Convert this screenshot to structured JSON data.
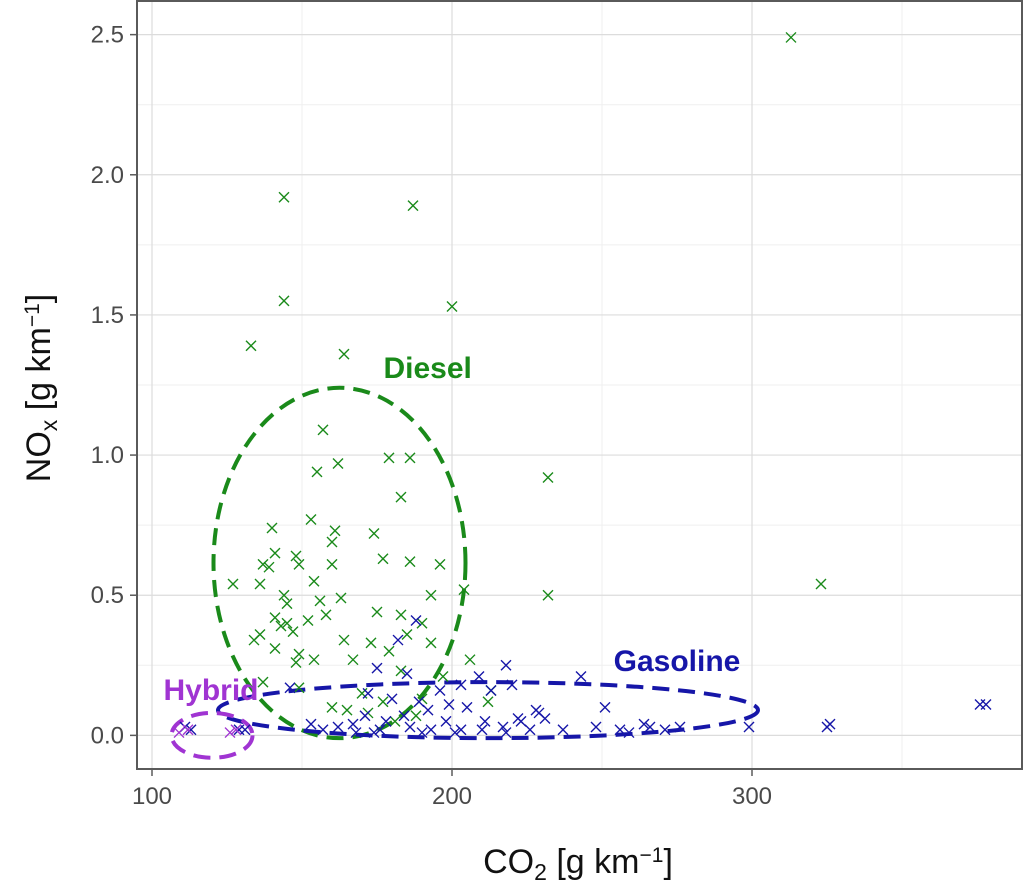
{
  "chart_data": {
    "type": "scatter",
    "xlim": [
      95,
      390
    ],
    "ylim": [
      -0.12,
      2.62
    ],
    "x_ticks": [
      100,
      200,
      300
    ],
    "y_ticks": [
      0.0,
      0.5,
      1.0,
      1.5,
      2.0,
      2.5
    ],
    "x_tick_labels": [
      "100",
      "200",
      "300"
    ],
    "y_tick_labels": [
      "0.0",
      "0.5",
      "1.0",
      "1.5",
      "2.0",
      "2.5"
    ],
    "grid": true,
    "xlabel": {
      "base": "CO",
      "sub": "2",
      "unit_prefix": " [g km",
      "sup": "−1",
      "suffix": "]"
    },
    "ylabel": {
      "base": "NO",
      "sub": "x",
      "unit_prefix": " [g km",
      "sup": "−1",
      "suffix": "]"
    },
    "groups": [
      {
        "label": "Diesel",
        "color": "#1a8a1a",
        "ellipse": {
          "cx": 162.5,
          "cy": 0.615,
          "rx": 42,
          "ry": 0.625
        }
      },
      {
        "label": "Gasoline",
        "color": "#1616a8",
        "ellipse": {
          "cx": 212,
          "cy": 0.09,
          "rx": 90,
          "ry": 0.1
        }
      },
      {
        "label": "Hybrid",
        "color": "#a034d2",
        "ellipse": {
          "cx": 120,
          "cy": 0.0,
          "rx": 13.5,
          "ry": 0.08
        }
      }
    ],
    "series": [
      {
        "group": "Diesel",
        "points": [
          [
            313,
            2.49
          ],
          [
            144,
            1.92
          ],
          [
            187,
            1.89
          ],
          [
            144,
            1.55
          ],
          [
            200,
            1.53
          ],
          [
            133,
            1.39
          ],
          [
            164,
            1.36
          ],
          [
            157,
            1.09
          ],
          [
            162,
            0.97
          ],
          [
            155,
            0.94
          ],
          [
            179,
            0.99
          ],
          [
            186,
            0.99
          ],
          [
            232,
            0.92
          ],
          [
            183,
            0.85
          ],
          [
            153,
            0.77
          ],
          [
            140,
            0.74
          ],
          [
            161,
            0.73
          ],
          [
            160,
            0.69
          ],
          [
            174,
            0.72
          ],
          [
            141,
            0.65
          ],
          [
            148,
            0.64
          ],
          [
            149,
            0.61
          ],
          [
            137,
            0.61
          ],
          [
            139,
            0.6
          ],
          [
            160,
            0.61
          ],
          [
            177,
            0.63
          ],
          [
            186,
            0.62
          ],
          [
            196,
            0.61
          ],
          [
            127,
            0.54
          ],
          [
            136,
            0.54
          ],
          [
            154,
            0.55
          ],
          [
            163,
            0.49
          ],
          [
            232,
            0.5
          ],
          [
            193,
            0.5
          ],
          [
            204,
            0.52
          ],
          [
            323,
            0.54
          ],
          [
            144,
            0.5
          ],
          [
            145,
            0.47
          ],
          [
            156,
            0.48
          ],
          [
            141,
            0.42
          ],
          [
            152,
            0.41
          ],
          [
            158,
            0.43
          ],
          [
            175,
            0.44
          ],
          [
            183,
            0.43
          ],
          [
            190,
            0.4
          ],
          [
            143,
            0.39
          ],
          [
            145,
            0.4
          ],
          [
            147,
            0.37
          ],
          [
            134,
            0.34
          ],
          [
            136,
            0.36
          ],
          [
            164,
            0.34
          ],
          [
            173,
            0.33
          ],
          [
            185,
            0.36
          ],
          [
            141,
            0.31
          ],
          [
            149,
            0.29
          ],
          [
            154,
            0.27
          ],
          [
            167,
            0.27
          ],
          [
            179,
            0.3
          ],
          [
            193,
            0.33
          ],
          [
            148,
            0.26
          ],
          [
            183,
            0.23
          ],
          [
            206,
            0.27
          ],
          [
            137,
            0.19
          ],
          [
            149,
            0.17
          ],
          [
            170,
            0.15
          ],
          [
            177,
            0.12
          ],
          [
            190,
            0.13
          ],
          [
            197,
            0.21
          ],
          [
            212,
            0.12
          ],
          [
            160,
            0.1
          ],
          [
            165,
            0.09
          ],
          [
            172,
            0.08
          ],
          [
            181,
            0.05
          ],
          [
            188,
            0.07
          ],
          [
            213,
            0.16
          ]
        ]
      },
      {
        "group": "Gasoline",
        "points": [
          [
            376,
            0.11
          ],
          [
            378,
            0.11
          ],
          [
            325,
            0.03
          ],
          [
            326,
            0.04
          ],
          [
            188,
            0.41
          ],
          [
            182,
            0.34
          ],
          [
            185,
            0.22
          ],
          [
            175,
            0.24
          ],
          [
            218,
            0.25
          ],
          [
            243,
            0.21
          ],
          [
            146,
            0.17
          ],
          [
            203,
            0.18
          ],
          [
            209,
            0.21
          ],
          [
            220,
            0.18
          ],
          [
            196,
            0.16
          ],
          [
            213,
            0.16
          ],
          [
            172,
            0.15
          ],
          [
            180,
            0.13
          ],
          [
            189,
            0.12
          ],
          [
            199,
            0.11
          ],
          [
            205,
            0.1
          ],
          [
            228,
            0.09
          ],
          [
            231,
            0.06
          ],
          [
            251,
            0.1
          ],
          [
            192,
            0.09
          ],
          [
            184,
            0.07
          ],
          [
            198,
            0.05
          ],
          [
            211,
            0.05
          ],
          [
            223,
            0.05
          ],
          [
            237,
            0.02
          ],
          [
            248,
            0.03
          ],
          [
            259,
            0.01
          ],
          [
            266,
            0.03
          ],
          [
            276,
            0.03
          ],
          [
            299,
            0.03
          ],
          [
            171,
            0.07
          ],
          [
            178,
            0.05
          ],
          [
            167,
            0.04
          ],
          [
            162,
            0.03
          ],
          [
            153,
            0.04
          ],
          [
            157,
            0.02
          ],
          [
            168,
            0.01
          ],
          [
            176,
            0.02
          ],
          [
            186,
            0.03
          ],
          [
            193,
            0.02
          ],
          [
            203,
            0.02
          ],
          [
            210,
            0.02
          ],
          [
            217,
            0.03
          ],
          [
            226,
            0.02
          ],
          [
            201,
            0.01
          ],
          [
            190,
            0.01
          ],
          [
            174,
            0.01
          ],
          [
            218,
            0.01
          ],
          [
            264,
            0.04
          ],
          [
            256,
            0.02
          ],
          [
            271,
            0.02
          ],
          [
            111,
            0.03
          ],
          [
            113,
            0.02
          ],
          [
            129,
            0.02
          ],
          [
            131,
            0.02
          ],
          [
            222,
            0.06
          ],
          [
            229,
            0.08
          ]
        ]
      },
      {
        "group": "Hybrid",
        "points": [
          [
            109,
            0.01
          ],
          [
            112,
            0.02
          ],
          [
            126,
            0.01
          ],
          [
            128,
            0.02
          ]
        ]
      }
    ]
  }
}
